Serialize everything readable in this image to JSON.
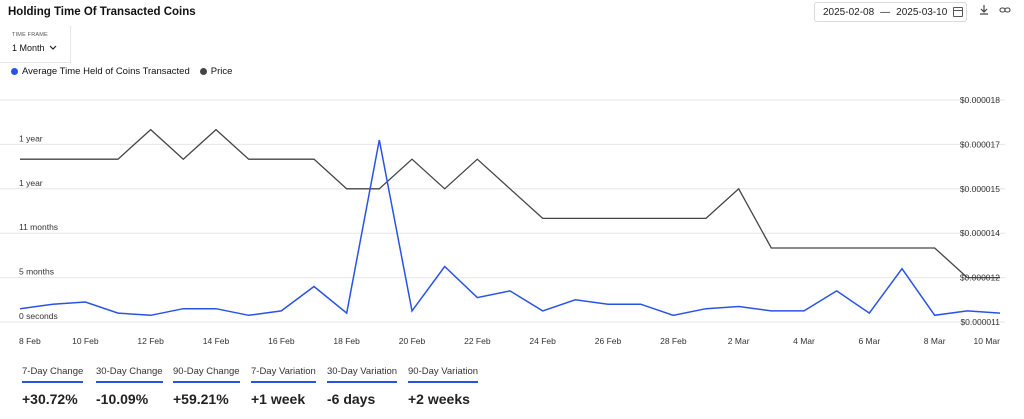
{
  "header": {
    "title": "Holding Time Of Transacted Coins",
    "date_start": "2025-02-08",
    "date_sep": "—",
    "date_end": "2025-03-10",
    "download_icon": "download-icon",
    "link_icon": "link-icon"
  },
  "timeframe": {
    "label": "TIME FRAME",
    "value": "1 Month"
  },
  "colors": {
    "holding": "#2a53e6",
    "price": "#444444",
    "grid": "#e6e6e6"
  },
  "chart_data": {
    "type": "line",
    "x": [
      "8 Feb",
      "9 Feb",
      "10 Feb",
      "11 Feb",
      "12 Feb",
      "13 Feb",
      "14 Feb",
      "15 Feb",
      "16 Feb",
      "17 Feb",
      "18 Feb",
      "19 Feb",
      "20 Feb",
      "21 Feb",
      "22 Feb",
      "23 Feb",
      "24 Feb",
      "25 Feb",
      "26 Feb",
      "27 Feb",
      "28 Feb",
      "1 Mar",
      "2 Mar",
      "3 Mar",
      "4 Mar",
      "5 Mar",
      "6 Mar",
      "7 Mar",
      "8 Mar",
      "9 Mar",
      "10 Mar"
    ],
    "x_tick_labels": [
      "8 Feb",
      "10 Feb",
      "12 Feb",
      "14 Feb",
      "16 Feb",
      "18 Feb",
      "20 Feb",
      "22 Feb",
      "24 Feb",
      "26 Feb",
      "28 Feb",
      "2 Mar",
      "4 Mar",
      "6 Mar",
      "8 Mar",
      "10 Mar"
    ],
    "y_left_tick_labels": [
      "0 seconds",
      "5 months",
      "11 months",
      "1 year",
      "1 year"
    ],
    "y_left_tick_fractions": [
      0,
      0.2,
      0.4,
      0.6,
      0.8
    ],
    "y_left_max_label_units": 1.0,
    "y_right_tick_labels": [
      "$0.000011",
      "$0.000012",
      "$0.000014",
      "$0.000015",
      "$0.000017",
      "$0.000018"
    ],
    "y_right_tick_fractions": [
      0,
      0.2,
      0.4,
      0.6,
      0.8,
      1.0
    ],
    "series": [
      {
        "name": "Average Time Held of Coins Transacted",
        "axis": "left",
        "values": [
          0.06,
          0.08,
          0.09,
          0.04,
          0.03,
          0.06,
          0.06,
          0.03,
          0.05,
          0.16,
          0.04,
          0.82,
          0.05,
          0.25,
          0.11,
          0.14,
          0.05,
          0.1,
          0.08,
          0.08,
          0.03,
          0.06,
          0.07,
          0.05,
          0.05,
          0.14,
          0.04,
          0.24,
          0.03,
          0.05,
          0.04
        ]
      },
      {
        "name": "Price",
        "axis": "right",
        "values": [
          1.65e-05,
          1.65e-05,
          1.65e-05,
          1.65e-05,
          1.75e-05,
          1.65e-05,
          1.75e-05,
          1.65e-05,
          1.65e-05,
          1.65e-05,
          1.55e-05,
          1.55e-05,
          1.65e-05,
          1.55e-05,
          1.65e-05,
          1.55e-05,
          1.45e-05,
          1.45e-05,
          1.45e-05,
          1.45e-05,
          1.45e-05,
          1.45e-05,
          1.55e-05,
          1.35e-05,
          1.35e-05,
          1.35e-05,
          1.35e-05,
          1.35e-05,
          1.35e-05,
          1.25e-05,
          1.25e-05
        ]
      }
    ],
    "y_right_range": [
      1.1e-05,
      1.85e-05
    ],
    "grid": true,
    "legend_position": "top-left"
  },
  "stats": [
    {
      "label": "7-Day Change",
      "value": "+30.72%"
    },
    {
      "label": "30-Day Change",
      "value": "-10.09%"
    },
    {
      "label": "90-Day Change",
      "value": "+59.21%"
    },
    {
      "label": "7-Day Variation",
      "value": "+1 week"
    },
    {
      "label": "30-Day Variation",
      "value": "-6 days"
    },
    {
      "label": "90-Day Variation",
      "value": "+2 weeks"
    }
  ]
}
